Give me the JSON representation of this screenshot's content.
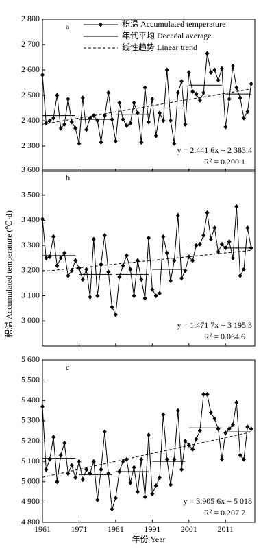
{
  "chart_data": [
    {
      "type": "line",
      "panel_label": "a",
      "x": [
        1961,
        1962,
        1963,
        1964,
        1965,
        1966,
        1967,
        1968,
        1969,
        1970,
        1971,
        1972,
        1973,
        1974,
        1975,
        1976,
        1977,
        1978,
        1979,
        1980,
        1981,
        1982,
        1983,
        1984,
        1985,
        1986,
        1987,
        1988,
        1989,
        1990,
        1991,
        1992,
        1993,
        1994,
        1995,
        1996,
        1997,
        1998,
        1999,
        2000,
        2001,
        2002,
        2003,
        2004,
        2005,
        2006,
        2007,
        2008,
        2009,
        2010,
        2011,
        2012,
        2013,
        2014,
        2015,
        2016,
        2017,
        2018
      ],
      "series": [
        {
          "name": "积温 Accumulated temperature",
          "color": "#000000",
          "values": [
            2580,
            2390,
            2400,
            2410,
            2500,
            2370,
            2385,
            2485,
            2395,
            2370,
            2310,
            2490,
            2365,
            2410,
            2420,
            2400,
            2315,
            2420,
            2510,
            2405,
            2320,
            2470,
            2405,
            2380,
            2390,
            2470,
            2430,
            2315,
            2530,
            2395,
            2485,
            2340,
            2430,
            2400,
            2600,
            2400,
            2310,
            2510,
            2555,
            2385,
            2590,
            2515,
            2505,
            2480,
            2510,
            2665,
            2590,
            2600,
            2560,
            2605,
            2375,
            2485,
            2615,
            2530,
            2490,
            2410,
            2435,
            2545
          ]
        }
      ],
      "decadal": {
        "name": "年代平均 Decadal average",
        "segments": [
          {
            "start": 1961,
            "end": 1970,
            "value": 2420
          },
          {
            "start": 1971,
            "end": 1980,
            "value": 2405
          },
          {
            "start": 1981,
            "end": 1990,
            "value": 2425
          },
          {
            "start": 1991,
            "end": 2000,
            "value": 2450
          },
          {
            "start": 2001,
            "end": 2010,
            "value": 2540
          },
          {
            "start": 2011,
            "end": 2018,
            "value": 2505
          }
        ]
      },
      "trend": {
        "name": "线性趋势 Linear trend",
        "x": [
          1961,
          2018
        ],
        "values": [
          2385.8,
          2525.0
        ]
      },
      "equation": "y = 2.441 6x + 2 383.4",
      "r2": "R² = 0.200 1",
      "xlim": [
        1961,
        2019
      ],
      "xticks": [
        1961,
        1971,
        1981,
        1991,
        2001,
        2011
      ],
      "ylim": [
        2200,
        2800
      ],
      "yticks": [
        {
          "value": 2300,
          "label": "2 300"
        },
        {
          "value": 2400,
          "label": "2 400"
        },
        {
          "value": 2500,
          "label": "2 500"
        },
        {
          "value": 2600,
          "label": "2 600"
        },
        {
          "value": 2700,
          "label": "2 700"
        },
        {
          "value": 2800,
          "label": "2 800"
        }
      ]
    },
    {
      "type": "line",
      "panel_label": "b",
      "x": [
        1961,
        1962,
        1963,
        1964,
        1965,
        1966,
        1967,
        1968,
        1969,
        1970,
        1971,
        1972,
        1973,
        1974,
        1975,
        1976,
        1977,
        1978,
        1979,
        1980,
        1981,
        1982,
        1983,
        1984,
        1985,
        1986,
        1987,
        1988,
        1989,
        1990,
        1991,
        1992,
        1993,
        1994,
        1995,
        1996,
        1997,
        1998,
        1999,
        2000,
        2001,
        2002,
        2003,
        2004,
        2005,
        2006,
        2007,
        2008,
        2009,
        2010,
        2011,
        2012,
        2013,
        2014,
        2015,
        2016,
        2017,
        2018
      ],
      "series": [
        {
          "color": "#000000",
          "values": [
            3405,
            3250,
            3255,
            3335,
            3220,
            3250,
            3270,
            3180,
            3200,
            3240,
            3210,
            3165,
            3205,
            3095,
            3325,
            3100,
            3225,
            3340,
            3195,
            3055,
            3025,
            3175,
            3220,
            3260,
            3205,
            3100,
            3240,
            3165,
            3090,
            3330,
            3125,
            3100,
            3110,
            3335,
            3270,
            3160,
            3240,
            3420,
            3170,
            3200,
            3255,
            3240,
            3300,
            3305,
            3340,
            3430,
            3325,
            3370,
            3275,
            3305,
            3290,
            3315,
            3250,
            3455,
            3180,
            3205,
            3370,
            3290
          ]
        }
      ],
      "decadal": {
        "segments": [
          {
            "start": 1961,
            "end": 1970,
            "value": 3260
          },
          {
            "start": 1971,
            "end": 1980,
            "value": 3185
          },
          {
            "start": 1981,
            "end": 1990,
            "value": 3185
          },
          {
            "start": 1991,
            "end": 2000,
            "value": 3205
          },
          {
            "start": 2001,
            "end": 2010,
            "value": 3310
          },
          {
            "start": 2011,
            "end": 2018,
            "value": 3290
          }
        ]
      },
      "trend": {
        "x": [
          1961,
          2018
        ],
        "values": [
          3196.8,
          3280.6
        ]
      },
      "equation": "y = 1.471 7x + 3 195.3",
      "r2": "R² = 0.064 6",
      "xlim": [
        1961,
        2019
      ],
      "xticks": [
        1961,
        1971,
        1981,
        1991,
        2001,
        2011
      ],
      "ylim": [
        2900,
        3600
      ],
      "yticks": [
        {
          "value": 3000,
          "label": "3 000"
        },
        {
          "value": 3100,
          "label": "3 100"
        },
        {
          "value": 3200,
          "label": "3 200"
        },
        {
          "value": 3300,
          "label": "3 300"
        },
        {
          "value": 3400,
          "label": "3 400"
        },
        {
          "value": 3500,
          "label": "3 500"
        },
        {
          "value": 3600,
          "label": "3 600"
        }
      ]
    },
    {
      "type": "line",
      "panel_label": "c",
      "x": [
        1961,
        1962,
        1963,
        1964,
        1965,
        1966,
        1967,
        1968,
        1969,
        1970,
        1971,
        1972,
        1973,
        1974,
        1975,
        1976,
        1977,
        1978,
        1979,
        1980,
        1981,
        1982,
        1983,
        1984,
        1985,
        1986,
        1987,
        1988,
        1989,
        1990,
        1991,
        1992,
        1993,
        1994,
        1995,
        1996,
        1997,
        1998,
        1999,
        2000,
        2001,
        2002,
        2003,
        2004,
        2005,
        2006,
        2007,
        2008,
        2009,
        2010,
        2011,
        2012,
        2013,
        2014,
        2015,
        2016,
        2017,
        2018
      ],
      "series": [
        {
          "color": "#000000",
          "values": [
            5370,
            5060,
            5110,
            5220,
            5000,
            5130,
            5190,
            5040,
            5080,
            5020,
            5100,
            5010,
            5060,
            5040,
            5100,
            4910,
            5060,
            5245,
            5040,
            4865,
            4920,
            5050,
            5100,
            5110,
            4995,
            5070,
            4950,
            5110,
            4925,
            5230,
            4940,
            4980,
            5020,
            5330,
            5110,
            4985,
            5110,
            5350,
            5060,
            5200,
            5180,
            5160,
            5210,
            5250,
            5430,
            5430,
            5340,
            5310,
            5260,
            5110,
            5240,
            5260,
            5280,
            5390,
            5130,
            5110,
            5270,
            5260
          ]
        }
      ],
      "decadal": {
        "segments": [
          {
            "start": 1961,
            "end": 1970,
            "value": 5115
          },
          {
            "start": 1971,
            "end": 1980,
            "value": 5035
          },
          {
            "start": 1981,
            "end": 1990,
            "value": 5050
          },
          {
            "start": 1991,
            "end": 2000,
            "value": 5100
          },
          {
            "start": 2001,
            "end": 2010,
            "value": 5265
          },
          {
            "start": 2011,
            "end": 2018,
            "value": 5245
          }
        ]
      },
      "trend": {
        "x": [
          1961,
          2018
        ],
        "values": [
          5021.9,
          5244.5
        ]
      },
      "equation": "y = 3.905 6x + 5 018",
      "r2": "R² = 0.207 7",
      "xlim": [
        1961,
        2019
      ],
      "xticks": [
        1961,
        1971,
        1981,
        1991,
        2001,
        2011
      ],
      "ylim": [
        4800,
        5600
      ],
      "yticks": [
        {
          "value": 4800,
          "label": "4 800"
        },
        {
          "value": 4900,
          "label": "4 900"
        },
        {
          "value": 5000,
          "label": "5 000"
        },
        {
          "value": 5100,
          "label": "5 100"
        },
        {
          "value": 5200,
          "label": "5 200"
        },
        {
          "value": 5300,
          "label": "5 300"
        },
        {
          "value": 5400,
          "label": "5 400"
        },
        {
          "value": 5500,
          "label": "5 500"
        },
        {
          "value": 5600,
          "label": "5 600"
        }
      ]
    }
  ],
  "y_label": "积温 Accumulated temperature (℃·d)",
  "x_label": "年份 Year"
}
